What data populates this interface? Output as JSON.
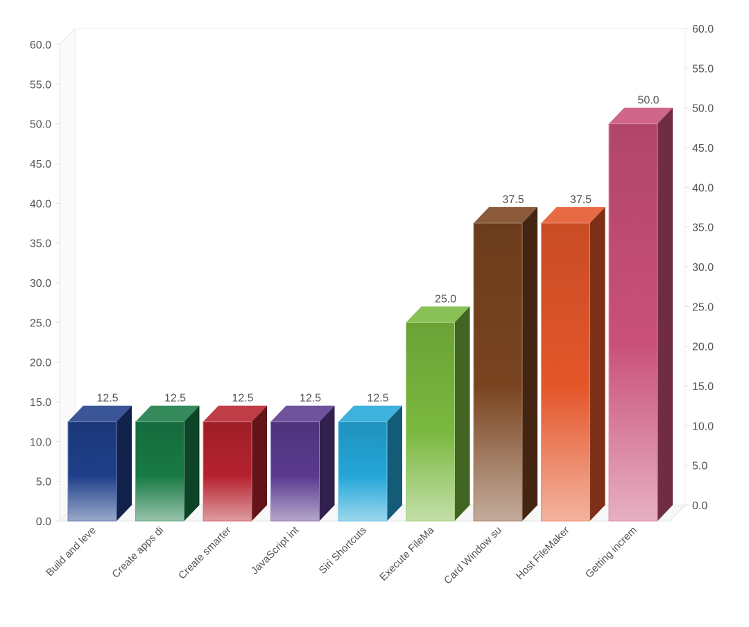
{
  "chart_data": {
    "type": "bar",
    "categories": [
      "Build and leve",
      "Create apps di",
      "Create smarter",
      "JavaScript int",
      "Siri Shortcuts",
      "Execute FileMa",
      "Card Window su",
      "Host FileMaker",
      "Getting increm"
    ],
    "values": [
      12.5,
      12.5,
      12.5,
      12.5,
      12.5,
      25.0,
      37.5,
      37.5,
      50.0
    ],
    "value_labels": [
      "12.5",
      "12.5",
      "12.5",
      "12.5",
      "12.5",
      "25.0",
      "37.5",
      "37.5",
      "50.0"
    ],
    "colors": [
      "#1f3f8a",
      "#187a45",
      "#b5222e",
      "#5a3a8e",
      "#24a6d8",
      "#7ab83f",
      "#7a4420",
      "#e4562a",
      "#c95078"
    ],
    "ylim": [
      0,
      60
    ],
    "y_ticks": [
      "0.0",
      "5.0",
      "10.0",
      "15.0",
      "20.0",
      "25.0",
      "30.0",
      "35.0",
      "40.0",
      "45.0",
      "50.0",
      "55.0",
      "60.0"
    ],
    "dual_y_axis": true,
    "style": "3d",
    "grid": false
  }
}
